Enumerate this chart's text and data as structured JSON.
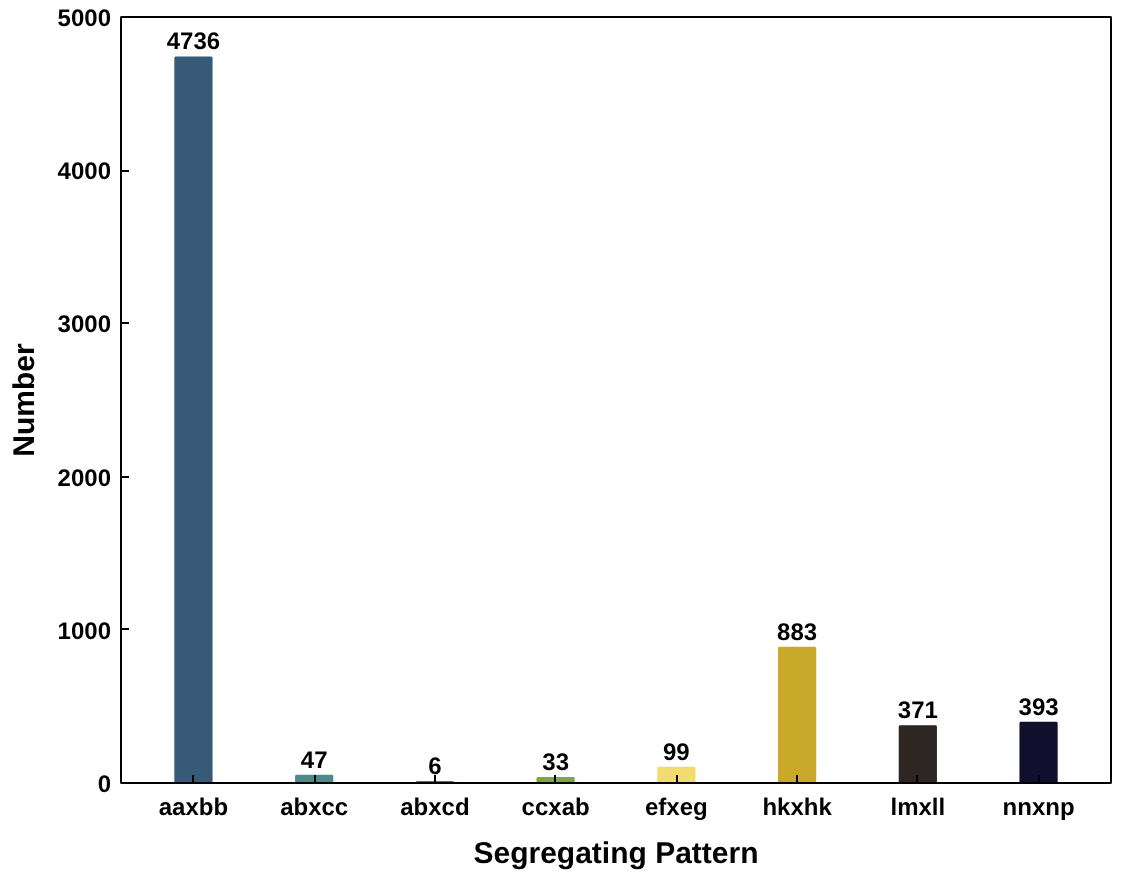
{
  "chart_data": {
    "type": "bar",
    "xlabel": "Segregating Pattern",
    "ylabel": "Number",
    "categories": [
      "aaxbb",
      "abxcc",
      "abxcd",
      "ccxab",
      "efxeg",
      "hkxhk",
      "lmxll",
      "nnxnp"
    ],
    "values": [
      4736,
      47,
      6,
      33,
      99,
      883,
      371,
      393
    ],
    "colors": [
      "#365a78",
      "#4d8a8c",
      "#3f7a80",
      "#7da645",
      "#f2dc6e",
      "#c9a82a",
      "#2e2622",
      "#10102e"
    ],
    "ylim": [
      0,
      5000
    ],
    "yticks": [
      0,
      1000,
      2000,
      3000,
      4000,
      5000
    ],
    "data_labels": true,
    "grid": false
  }
}
